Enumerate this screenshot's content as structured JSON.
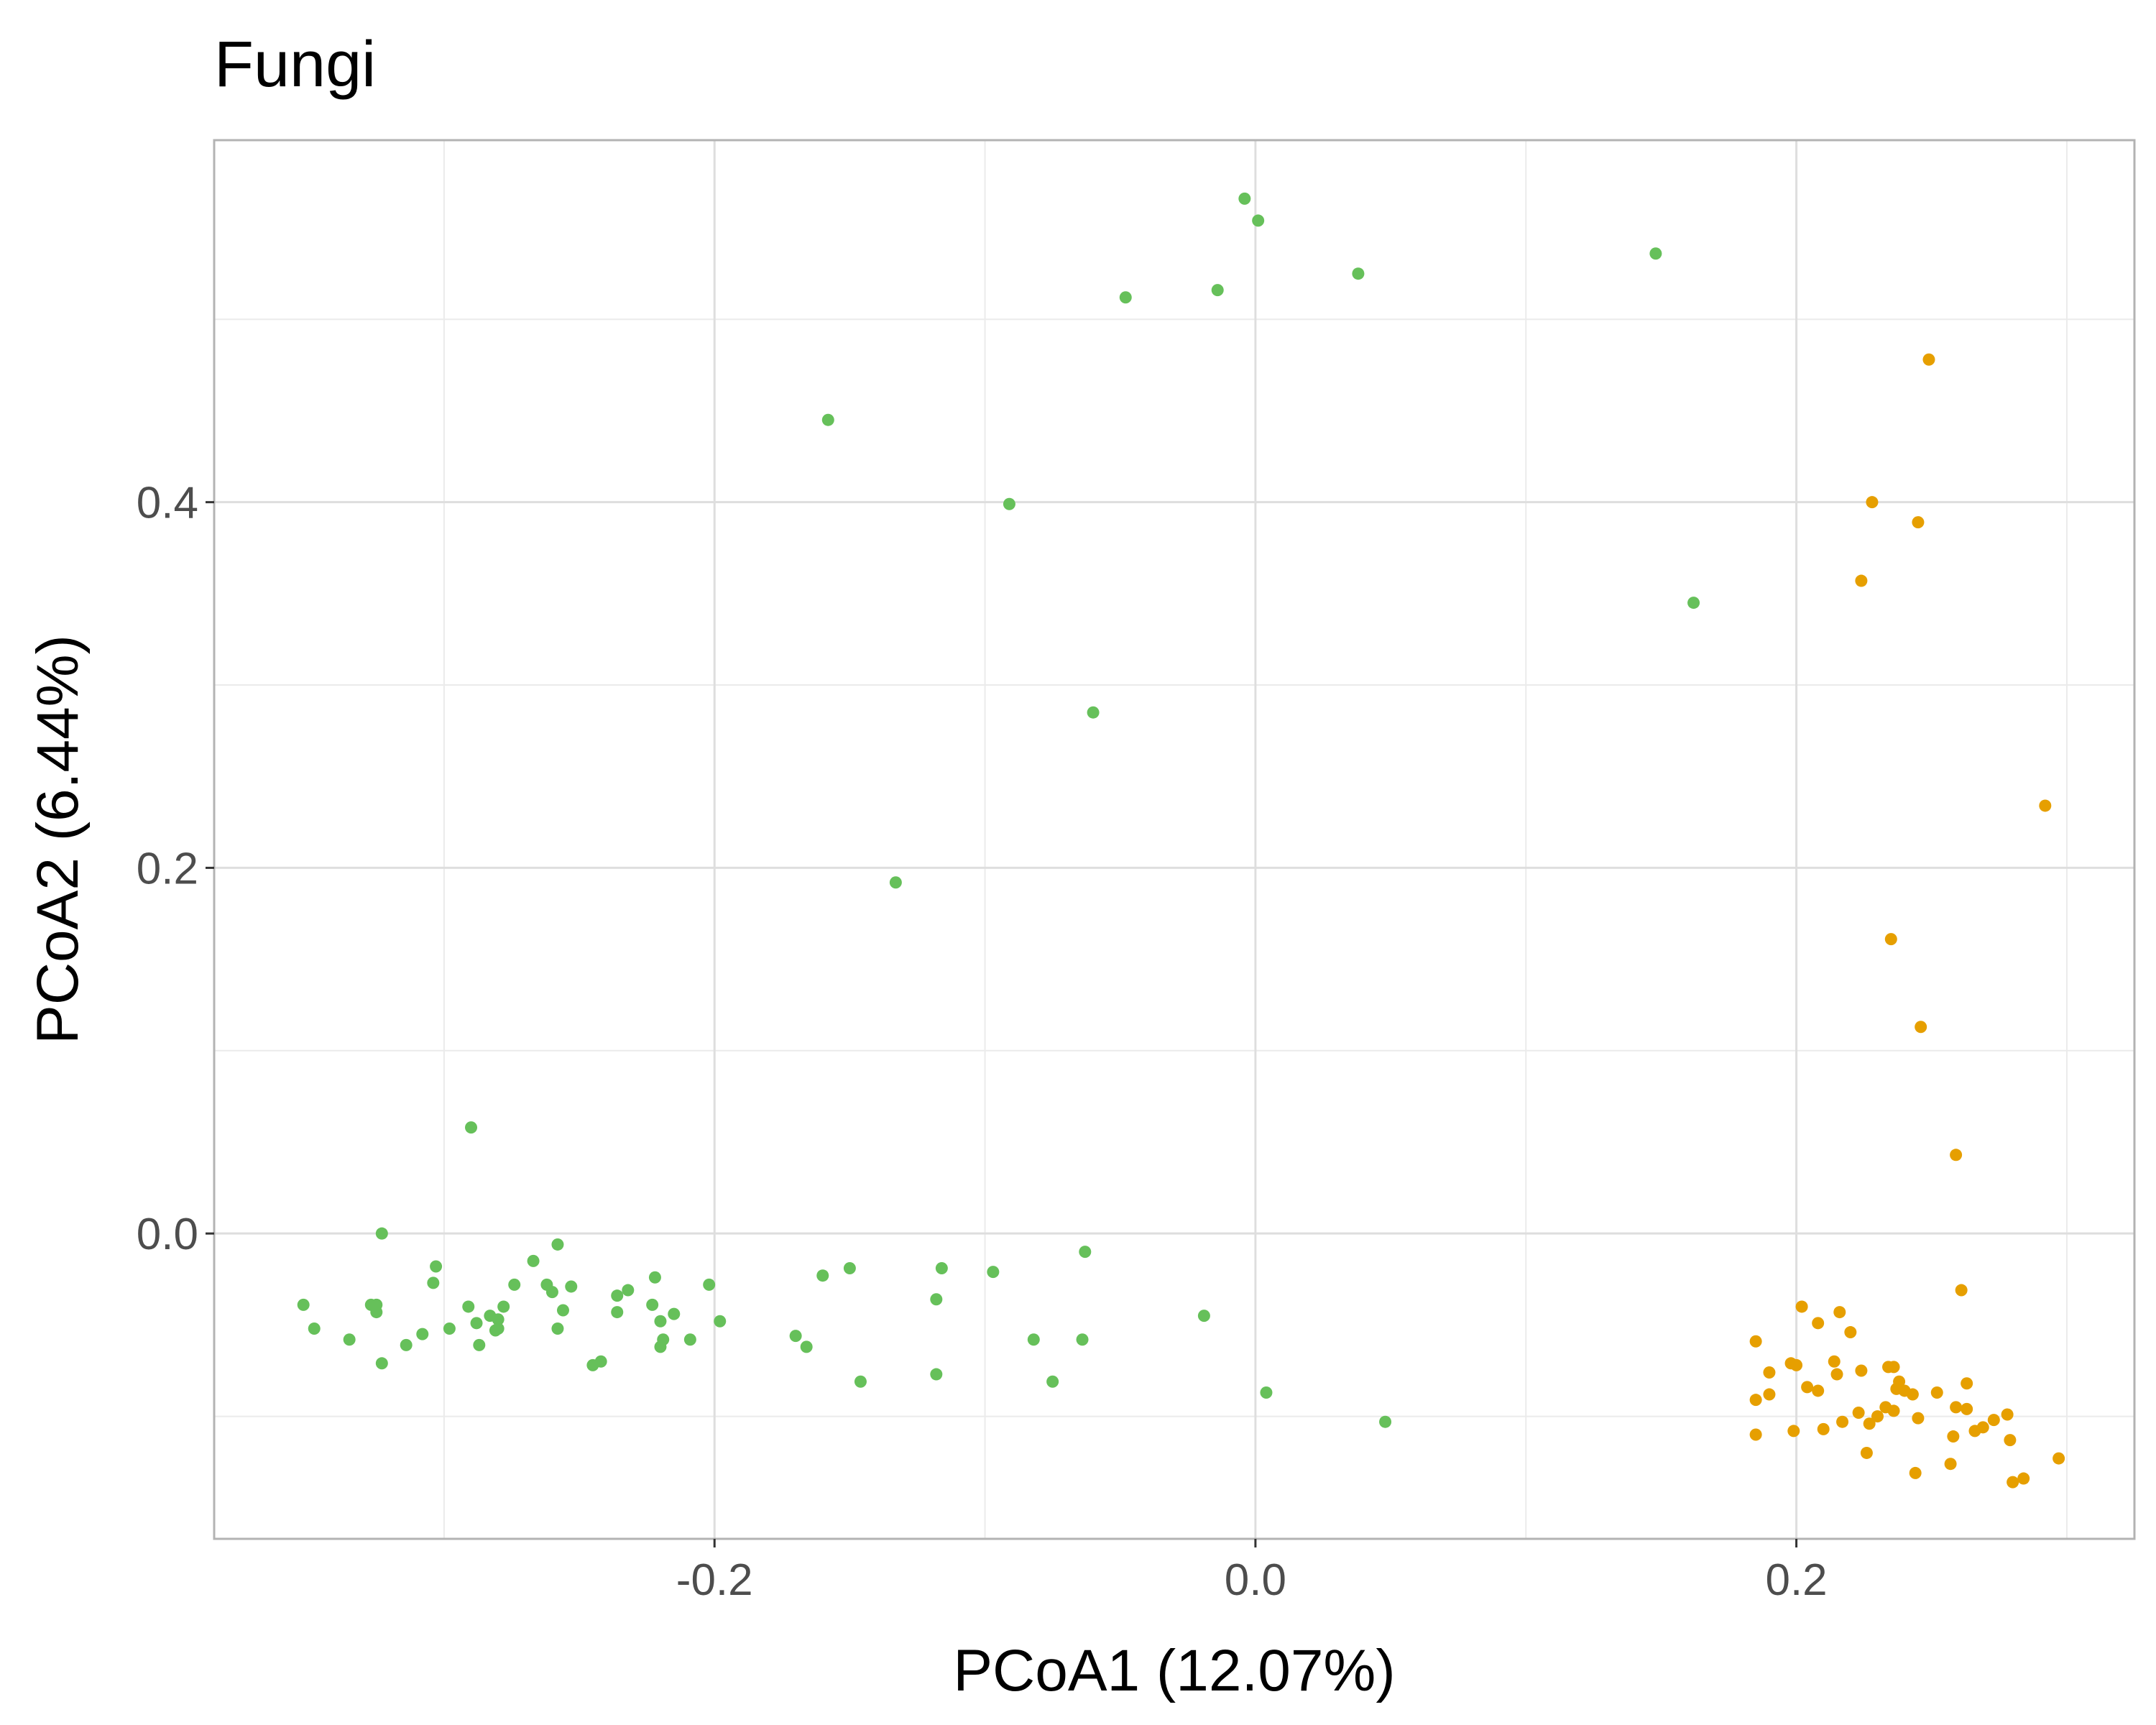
{
  "chart_data": {
    "type": "scatter",
    "title": "Fungi",
    "xlabel": "PCoA1 (12.07%)",
    "ylabel": "PCoA2 (6.44%)",
    "xlim": [
      -0.385,
      0.325
    ],
    "ylim": [
      -0.167,
      0.598
    ],
    "x_ticks": [
      -0.2,
      0.0,
      0.2
    ],
    "x_tick_labels": [
      "-0.2",
      "0.0",
      "0.2"
    ],
    "y_ticks": [
      0.0,
      0.2,
      0.4
    ],
    "y_tick_labels": [
      "0.0",
      "0.2",
      "0.4"
    ],
    "grid": true,
    "legend": "none",
    "series": [
      {
        "color": "#66c05a",
        "points": [
          [
            -0.004,
            0.566
          ],
          [
            0.001,
            0.554
          ],
          [
            0.148,
            0.536
          ],
          [
            0.038,
            0.525
          ],
          [
            -0.048,
            0.512
          ],
          [
            -0.014,
            0.516
          ],
          [
            -0.158,
            0.445
          ],
          [
            -0.091,
            0.399
          ],
          [
            0.162,
            0.345
          ],
          [
            -0.06,
            0.285
          ],
          [
            -0.133,
            0.192
          ],
          [
            -0.29,
            0.058
          ],
          [
            -0.323,
            0.0
          ],
          [
            -0.258,
            -0.006
          ],
          [
            -0.267,
            -0.015
          ],
          [
            -0.303,
            -0.018
          ],
          [
            -0.304,
            -0.027
          ],
          [
            -0.063,
            -0.01
          ],
          [
            -0.15,
            -0.019
          ],
          [
            -0.116,
            -0.019
          ],
          [
            -0.16,
            -0.023
          ],
          [
            -0.097,
            -0.021
          ],
          [
            -0.222,
            -0.024
          ],
          [
            -0.202,
            -0.028
          ],
          [
            -0.274,
            -0.028
          ],
          [
            -0.262,
            -0.028
          ],
          [
            -0.253,
            -0.029
          ],
          [
            -0.26,
            -0.032
          ],
          [
            -0.232,
            -0.031
          ],
          [
            -0.236,
            -0.034
          ],
          [
            -0.118,
            -0.036
          ],
          [
            -0.352,
            -0.039
          ],
          [
            -0.327,
            -0.039
          ],
          [
            -0.325,
            -0.039
          ],
          [
            -0.291,
            -0.04
          ],
          [
            -0.278,
            -0.04
          ],
          [
            -0.325,
            -0.043
          ],
          [
            -0.256,
            -0.042
          ],
          [
            -0.236,
            -0.043
          ],
          [
            -0.215,
            -0.044
          ],
          [
            -0.223,
            -0.039
          ],
          [
            -0.019,
            -0.045
          ],
          [
            -0.283,
            -0.045
          ],
          [
            -0.28,
            -0.047
          ],
          [
            -0.288,
            -0.049
          ],
          [
            -0.22,
            -0.048
          ],
          [
            -0.198,
            -0.048
          ],
          [
            -0.348,
            -0.052
          ],
          [
            -0.28,
            -0.052
          ],
          [
            -0.298,
            -0.052
          ],
          [
            -0.281,
            -0.053
          ],
          [
            -0.308,
            -0.055
          ],
          [
            -0.258,
            -0.052
          ],
          [
            -0.219,
            -0.058
          ],
          [
            -0.209,
            -0.058
          ],
          [
            -0.17,
            -0.056
          ],
          [
            -0.082,
            -0.058
          ],
          [
            -0.064,
            -0.058
          ],
          [
            -0.335,
            -0.058
          ],
          [
            -0.314,
            -0.061
          ],
          [
            -0.287,
            -0.061
          ],
          [
            -0.22,
            -0.062
          ],
          [
            -0.166,
            -0.062
          ],
          [
            -0.242,
            -0.07
          ],
          [
            -0.245,
            -0.072
          ],
          [
            -0.323,
            -0.071
          ],
          [
            -0.118,
            -0.077
          ],
          [
            -0.146,
            -0.081
          ],
          [
            -0.075,
            -0.081
          ],
          [
            0.004,
            -0.087
          ],
          [
            0.048,
            -0.103
          ]
        ]
      },
      {
        "color": "#e69f00",
        "points": [
          [
            0.249,
            0.478
          ],
          [
            0.228,
            0.4
          ],
          [
            0.245,
            0.389
          ],
          [
            0.224,
            0.357
          ],
          [
            0.292,
            0.234
          ],
          [
            0.235,
            0.161
          ],
          [
            0.246,
            0.113
          ],
          [
            0.259,
            0.043
          ],
          [
            0.261,
            -0.031
          ],
          [
            0.202,
            -0.04
          ],
          [
            0.216,
            -0.043
          ],
          [
            0.208,
            -0.049
          ],
          [
            0.22,
            -0.054
          ],
          [
            0.185,
            -0.059
          ],
          [
            0.198,
            -0.071
          ],
          [
            0.2,
            -0.072
          ],
          [
            0.214,
            -0.07
          ],
          [
            0.234,
            -0.073
          ],
          [
            0.236,
            -0.073
          ],
          [
            0.19,
            -0.076
          ],
          [
            0.215,
            -0.077
          ],
          [
            0.224,
            -0.075
          ],
          [
            0.238,
            -0.081
          ],
          [
            0.263,
            -0.082
          ],
          [
            0.204,
            -0.084
          ],
          [
            0.208,
            -0.086
          ],
          [
            0.237,
            -0.085
          ],
          [
            0.24,
            -0.086
          ],
          [
            0.252,
            -0.087
          ],
          [
            0.243,
            -0.088
          ],
          [
            0.19,
            -0.088
          ],
          [
            0.185,
            -0.091
          ],
          [
            0.233,
            -0.095
          ],
          [
            0.259,
            -0.095
          ],
          [
            0.263,
            -0.096
          ],
          [
            0.223,
            -0.098
          ],
          [
            0.236,
            -0.097
          ],
          [
            0.23,
            -0.1
          ],
          [
            0.278,
            -0.099
          ],
          [
            0.245,
            -0.101
          ],
          [
            0.273,
            -0.102
          ],
          [
            0.217,
            -0.103
          ],
          [
            0.227,
            -0.104
          ],
          [
            0.269,
            -0.106
          ],
          [
            0.21,
            -0.107
          ],
          [
            0.199,
            -0.108
          ],
          [
            0.266,
            -0.108
          ],
          [
            0.258,
            -0.111
          ],
          [
            0.185,
            -0.11
          ],
          [
            0.279,
            -0.113
          ],
          [
            0.226,
            -0.12
          ],
          [
            0.297,
            -0.123
          ],
          [
            0.244,
            -0.131
          ],
          [
            0.257,
            -0.126
          ],
          [
            0.284,
            -0.134
          ],
          [
            0.28,
            -0.136
          ]
        ]
      }
    ]
  }
}
